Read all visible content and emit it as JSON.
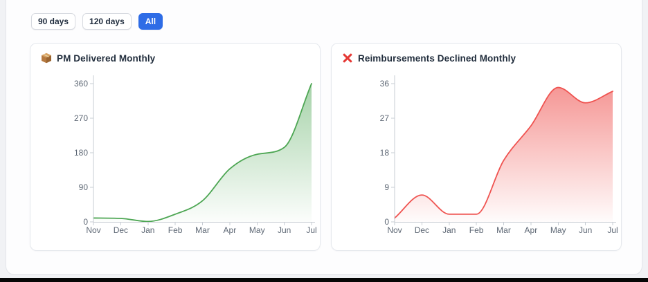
{
  "filters": {
    "buttons": [
      {
        "label": "90 days",
        "active": false
      },
      {
        "label": "120 days",
        "active": false
      },
      {
        "label": "All",
        "active": true
      }
    ]
  },
  "colors": {
    "accent_blue": "#2e6ce6",
    "green_line": "#4da653",
    "red_line": "#ef5350",
    "axis_line": "#c7ccd3",
    "axis_text": "#5d6774",
    "title_text": "#232f3e"
  },
  "chart_data": [
    {
      "type": "area",
      "title": "PM Delivered Monthly",
      "icon": "package-icon",
      "categories": [
        "Nov",
        "Dec",
        "Jan",
        "Feb",
        "Mar",
        "Apr",
        "May",
        "Jun",
        "Jul"
      ],
      "values": [
        10,
        9,
        1,
        20,
        55,
        138,
        176,
        194,
        360
      ],
      "yticks": [
        0,
        90,
        180,
        270,
        360
      ],
      "ylim": [
        0,
        360
      ],
      "xlabel": "",
      "ylabel": "",
      "grid": false,
      "legend": "none",
      "line_color": "#4da653",
      "fill_top_opacity": 0.5
    },
    {
      "type": "area",
      "title": "Reimbursements Declined Monthly",
      "icon": "declined-icon",
      "categories": [
        "Nov",
        "Dec",
        "Jan",
        "Feb",
        "Mar",
        "Apr",
        "May",
        "Jun",
        "Jul"
      ],
      "values": [
        1,
        7,
        2,
        2,
        16,
        25,
        35,
        31,
        34
      ],
      "yticks": [
        0,
        9,
        18,
        27,
        36
      ],
      "ylim": [
        0,
        36
      ],
      "xlabel": "",
      "ylabel": "",
      "grid": false,
      "legend": "none",
      "line_color": "#ef5350",
      "fill_top_opacity": 0.62
    }
  ]
}
